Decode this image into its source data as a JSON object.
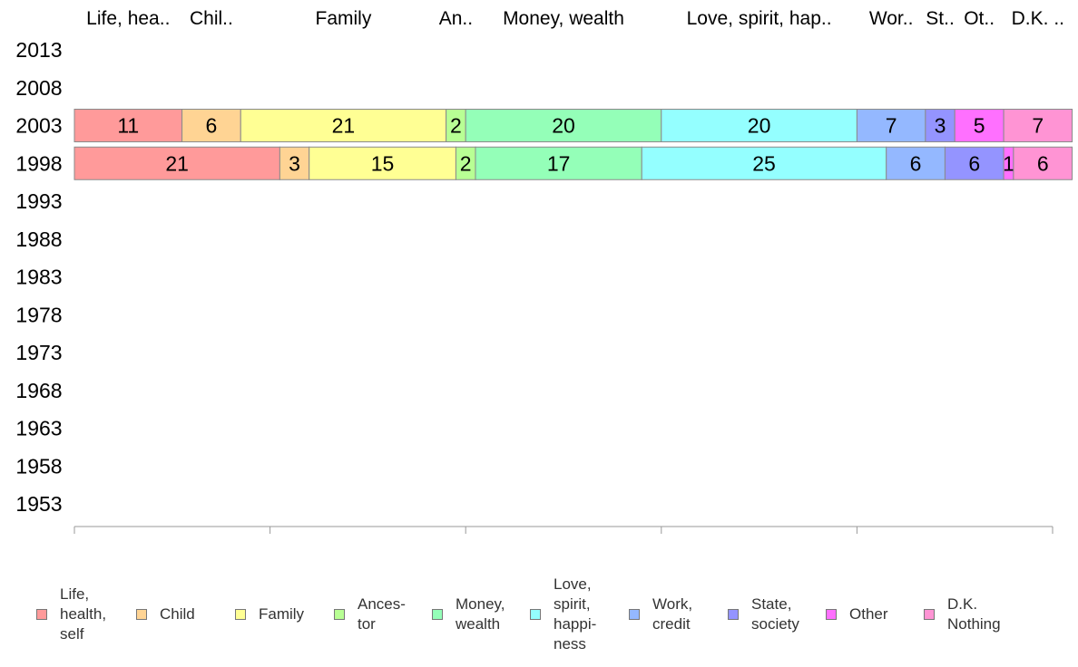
{
  "chart_data": {
    "type": "bar",
    "orientation": "horizontal",
    "stacked": true,
    "y_categories": [
      "2013",
      "2008",
      "2003",
      "1998",
      "1993",
      "1988",
      "1983",
      "1978",
      "1973",
      "1968",
      "1963",
      "1958",
      "1953"
    ],
    "xlim": [
      0,
      100
    ],
    "x_ticks": [
      "0",
      "20",
      "40",
      "60",
      "80",
      "100"
    ],
    "grid": false,
    "legend_position": "bottom",
    "top_category_labels": [
      "Life, hea..",
      "Chil..",
      "Family",
      "An..",
      "Money, wealth",
      "Love, spirit, hap..",
      "Wor..",
      "St..",
      "Ot..",
      "D.K. .."
    ],
    "series": [
      {
        "name": "Life,\nhealth,\nself",
        "color": "#ff9a9a",
        "values": {
          "2003": 11,
          "1998": 21
        },
        "data_labels": {
          "2003": "11",
          "1998": "21"
        }
      },
      {
        "name": "Child",
        "color": "#ffd494",
        "values": {
          "2003": 6,
          "1998": 3
        },
        "data_labels": {
          "2003": "6",
          "1998": "3"
        }
      },
      {
        "name": "Family",
        "color": "#ffff94",
        "values": {
          "2003": 21,
          "1998": 15
        },
        "data_labels": {
          "2003": "21",
          "1998": "15"
        }
      },
      {
        "name": "Ances-\ntor",
        "color": "#b8ff94",
        "values": {
          "2003": 2,
          "1998": 2
        },
        "data_labels": {
          "2003": "2",
          "1998": "2"
        }
      },
      {
        "name": "Money,\nwealth",
        "color": "#94ffb8",
        "values": {
          "2003": 20,
          "1998": 17
        },
        "data_labels": {
          "2003": "20",
          "1998": "17"
        }
      },
      {
        "name": "Love,\nspirit,\nhappi-\nness",
        "color": "#94ffff",
        "values": {
          "2003": 20,
          "1998": 25
        },
        "data_labels": {
          "2003": "20",
          "1998": "25"
        }
      },
      {
        "name": "Work,\ncredit",
        "color": "#94b8ff",
        "values": {
          "2003": 7,
          "1998": 6
        },
        "data_labels": {
          "2003": "7",
          "1998": "6"
        }
      },
      {
        "name": "State,\nsociety",
        "color": "#9494ff",
        "values": {
          "2003": 3,
          "1998": 6
        },
        "data_labels": {
          "2003": "3",
          "1998": "6"
        }
      },
      {
        "name": "Other",
        "color": "#ff70ff",
        "values": {
          "2003": 5,
          "1998": 1
        },
        "data_labels": {
          "2003": "5",
          "1998": "1"
        }
      },
      {
        "name": "D.K.\nNothing",
        "color": "#ff94d4",
        "values": {
          "2003": 7,
          "1998": 6
        },
        "data_labels": {
          "2003": "7",
          "1998": "6"
        }
      }
    ]
  }
}
